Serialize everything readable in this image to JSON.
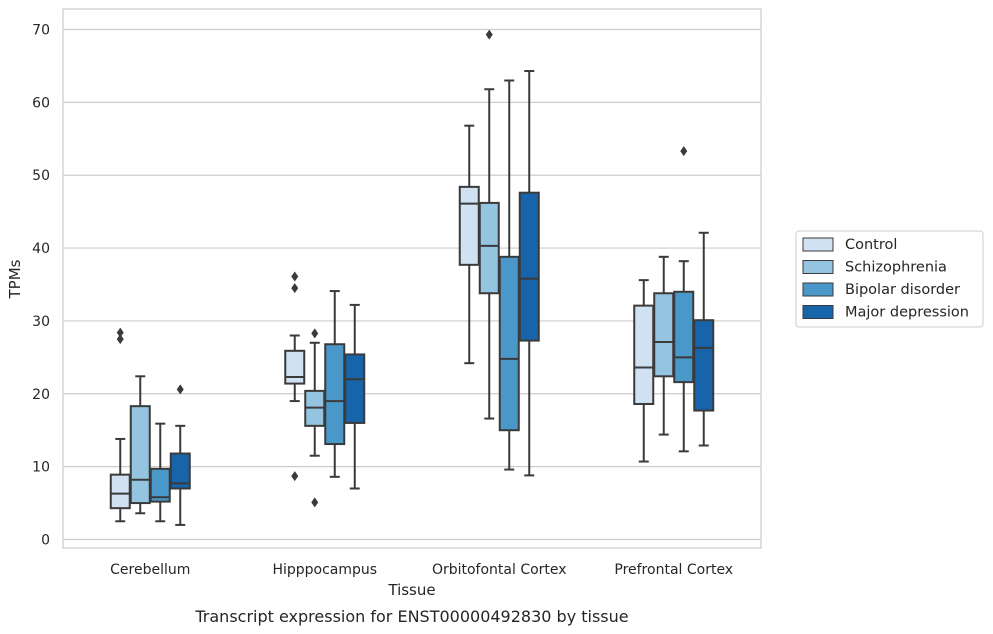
{
  "chart_data": {
    "type": "boxplot",
    "title": "",
    "caption": "Transcript expression for ENST00000492830 by tissue",
    "xlabel": "Tissue",
    "ylabel": "TPMs",
    "ylim": [
      -1,
      72.5
    ],
    "yticks": [
      0,
      10,
      20,
      30,
      40,
      50,
      60,
      70
    ],
    "grid": "horizontal",
    "legend_position": "right-center",
    "categories": [
      "Cerebellum",
      "Hipppocampus",
      "Orbitofontal Cortex",
      "Prefrontal Cortex"
    ],
    "series": [
      {
        "name": "Control",
        "color": "#d0e1f2",
        "boxes": [
          {
            "whisker_low": 2.5,
            "q1": 4.3,
            "median": 6.3,
            "q3": 8.9,
            "whisker_high": 13.8,
            "outliers": [
              27.5,
              28.4
            ]
          },
          {
            "whisker_low": 19.0,
            "q1": 21.4,
            "median": 22.3,
            "q3": 25.9,
            "whisker_high": 28.0,
            "outliers": [
              8.7,
              34.5,
              36.1
            ]
          },
          {
            "whisker_low": 24.2,
            "q1": 37.7,
            "median": 46.1,
            "q3": 48.4,
            "whisker_high": 56.8,
            "outliers": []
          },
          {
            "whisker_low": 10.7,
            "q1": 18.6,
            "median": 23.6,
            "q3": 32.1,
            "whisker_high": 35.6,
            "outliers": []
          }
        ]
      },
      {
        "name": "Schizophrenia",
        "color": "#94c4df",
        "boxes": [
          {
            "whisker_low": 3.6,
            "q1": 5.0,
            "median": 8.2,
            "q3": 18.3,
            "whisker_high": 22.4,
            "outliers": []
          },
          {
            "whisker_low": 11.5,
            "q1": 15.6,
            "median": 18.1,
            "q3": 20.4,
            "whisker_high": 27.0,
            "outliers": [
              5.1,
              28.3
            ]
          },
          {
            "whisker_low": 16.6,
            "q1": 33.8,
            "median": 40.3,
            "q3": 46.2,
            "whisker_high": 61.8,
            "outliers": [
              69.3
            ]
          },
          {
            "whisker_low": 14.4,
            "q1": 22.4,
            "median": 27.1,
            "q3": 33.8,
            "whisker_high": 38.8,
            "outliers": []
          }
        ]
      },
      {
        "name": "Bipolar disorder",
        "color": "#4a98c9",
        "boxes": [
          {
            "whisker_low": 2.5,
            "q1": 5.2,
            "median": 5.8,
            "q3": 9.7,
            "whisker_high": 15.9,
            "outliers": []
          },
          {
            "whisker_low": 8.6,
            "q1": 13.1,
            "median": 19.0,
            "q3": 26.8,
            "whisker_high": 34.1,
            "outliers": []
          },
          {
            "whisker_low": 9.6,
            "q1": 15.0,
            "median": 24.8,
            "q3": 38.8,
            "whisker_high": 63.0,
            "outliers": []
          },
          {
            "whisker_low": 12.1,
            "q1": 21.6,
            "median": 25.0,
            "q3": 34.0,
            "whisker_high": 38.2,
            "outliers": [
              53.3
            ]
          }
        ]
      },
      {
        "name": "Major depression",
        "color": "#1764ab",
        "boxes": [
          {
            "whisker_low": 2.0,
            "q1": 7.0,
            "median": 7.7,
            "q3": 11.8,
            "whisker_high": 15.6,
            "outliers": [
              20.6
            ]
          },
          {
            "whisker_low": 7.0,
            "q1": 16.0,
            "median": 22.0,
            "q3": 25.4,
            "whisker_high": 32.2,
            "outliers": []
          },
          {
            "whisker_low": 8.8,
            "q1": 27.3,
            "median": 35.8,
            "q3": 47.6,
            "whisker_high": 64.3,
            "outliers": []
          },
          {
            "whisker_low": 12.9,
            "q1": 17.7,
            "median": 26.3,
            "q3": 30.1,
            "whisker_high": 42.1,
            "outliers": []
          }
        ]
      }
    ]
  }
}
